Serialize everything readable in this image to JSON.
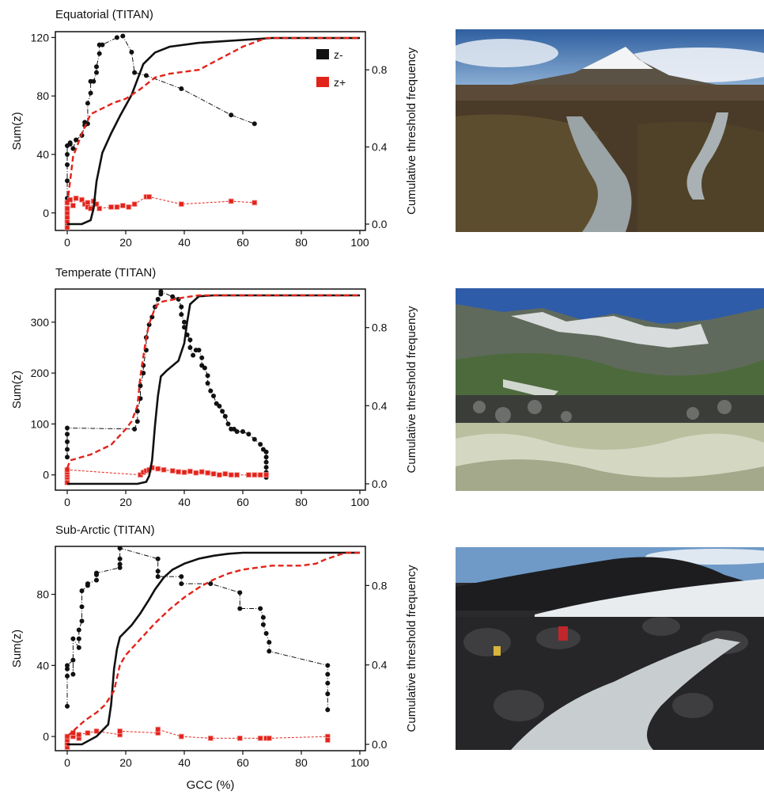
{
  "figure": {
    "shared_xlabel": "GCC (%)"
  },
  "chart_data": [
    {
      "type": "line",
      "title": "Equatorial (TITAN)",
      "xlabel": "",
      "ylabel": "Sum(z)",
      "y2label": "Cumulative threshold frequency",
      "xlim": [
        0,
        100
      ],
      "xticks": [
        0,
        20,
        40,
        60,
        80,
        100
      ],
      "ylim": [
        -12,
        124
      ],
      "yticks": [
        0,
        40,
        80,
        120
      ],
      "y2lim": [
        0,
        1
      ],
      "y2ticks": [
        0.0,
        0.4,
        0.8
      ],
      "legend": {
        "placement": "top-right",
        "entries": [
          "z-",
          "z+"
        ]
      },
      "series": [
        {
          "name": "z-",
          "kind": "points",
          "color": "#111111",
          "axis": "left",
          "x": [
            0,
            0,
            0,
            0,
            0,
            0,
            0,
            0,
            1,
            1,
            2,
            3,
            5,
            6,
            6,
            7,
            7,
            8,
            8,
            9,
            10,
            10,
            11,
            11,
            12,
            17,
            19,
            22,
            23,
            27,
            39,
            56,
            64
          ],
          "y": [
            -12,
            -8,
            -2,
            10,
            22,
            33,
            40,
            46,
            47,
            48,
            44,
            50,
            53,
            60,
            62,
            61,
            75,
            82,
            90,
            90,
            96,
            100,
            109,
            115,
            115,
            120,
            121,
            110,
            96,
            94,
            85,
            67,
            61
          ]
        },
        {
          "name": "z+",
          "kind": "points",
          "color": "#e2231a",
          "axis": "left",
          "x": [
            0,
            0,
            0,
            0,
            0,
            0,
            1,
            2,
            3,
            5,
            6,
            7,
            7,
            8,
            9,
            10,
            11,
            15,
            17,
            19,
            21,
            23,
            27,
            28,
            39,
            56,
            64
          ],
          "y": [
            -10,
            -6,
            -3,
            0,
            3,
            7,
            9,
            5,
            10,
            9,
            6,
            7,
            4,
            3,
            8,
            6,
            3,
            4,
            4,
            5,
            4,
            6,
            11,
            11,
            6,
            8,
            7
          ]
        },
        {
          "name": "z- cumulative",
          "kind": "curve",
          "color": "#111111",
          "axis": "right",
          "x": [
            0,
            5,
            8,
            9,
            10,
            12,
            15,
            18,
            22,
            26,
            30,
            35,
            45,
            70,
            100
          ],
          "y": [
            0.0,
            0.0,
            0.02,
            0.08,
            0.22,
            0.37,
            0.47,
            0.56,
            0.67,
            0.83,
            0.89,
            0.92,
            0.94,
            0.965,
            0.965
          ]
        },
        {
          "name": "z+ cumulative",
          "kind": "curve",
          "color": "#e2231a",
          "axis": "right",
          "x": [
            0,
            2,
            5,
            8,
            12,
            16,
            20,
            25,
            30,
            35,
            40,
            45,
            50,
            55,
            60,
            68,
            100
          ],
          "y": [
            0.1,
            0.35,
            0.47,
            0.57,
            0.6,
            0.63,
            0.65,
            0.7,
            0.76,
            0.78,
            0.79,
            0.8,
            0.84,
            0.88,
            0.92,
            0.965,
            0.965
          ]
        }
      ]
    },
    {
      "type": "line",
      "title": "Temperate (TITAN)",
      "xlabel": "",
      "ylabel": "Sum(z)",
      "y2label": "Cumulative threshold frequency",
      "xlim": [
        0,
        100
      ],
      "xticks": [
        0,
        20,
        40,
        60,
        80,
        100
      ],
      "ylim": [
        -30,
        365
      ],
      "yticks": [
        0,
        100,
        200,
        300
      ],
      "y2lim": [
        0,
        1
      ],
      "y2ticks": [
        0.0,
        0.4,
        0.8
      ],
      "series": [
        {
          "name": "z-",
          "kind": "points",
          "color": "#111111",
          "axis": "left",
          "x": [
            0,
            0,
            0,
            0,
            0,
            23,
            24,
            24,
            25,
            25,
            26,
            26,
            27,
            27,
            28,
            29,
            30,
            31,
            32,
            32,
            36,
            38,
            39,
            39,
            40,
            40,
            41,
            42,
            42,
            43,
            44,
            45,
            46,
            46,
            47,
            48,
            48,
            49,
            50,
            51,
            52,
            53,
            54,
            55,
            56,
            57,
            58,
            60,
            62,
            64,
            66,
            67,
            68,
            68,
            68,
            68,
            68,
            68
          ],
          "y": [
            35,
            50,
            65,
            80,
            92,
            90,
            105,
            125,
            150,
            175,
            200,
            215,
            245,
            270,
            295,
            310,
            330,
            345,
            355,
            360,
            350,
            345,
            330,
            315,
            300,
            290,
            275,
            265,
            250,
            235,
            245,
            245,
            230,
            215,
            210,
            195,
            180,
            165,
            155,
            140,
            135,
            125,
            115,
            100,
            90,
            90,
            85,
            85,
            80,
            70,
            60,
            50,
            45,
            35,
            25,
            15,
            5,
            -5
          ]
        },
        {
          "name": "z+",
          "kind": "points",
          "color": "#e2231a",
          "axis": "left",
          "x": [
            0,
            0,
            0,
            0,
            0,
            25,
            26,
            27,
            28,
            29,
            31,
            33,
            36,
            38,
            40,
            42,
            44,
            46,
            48,
            50,
            52,
            54,
            56,
            58,
            62,
            64,
            66,
            68
          ],
          "y": [
            -15,
            -5,
            0,
            5,
            10,
            0,
            5,
            8,
            10,
            14,
            12,
            10,
            8,
            6,
            5,
            7,
            4,
            6,
            4,
            2,
            0,
            2,
            0,
            0,
            0,
            0,
            0,
            0
          ]
        },
        {
          "name": "z- cumulative",
          "kind": "curve",
          "color": "#111111",
          "axis": "right",
          "x": [
            0,
            24,
            27,
            28,
            29,
            30,
            31,
            32,
            34,
            38,
            40,
            41,
            42,
            45,
            50,
            100
          ],
          "y": [
            0.0,
            0.0,
            0.01,
            0.04,
            0.12,
            0.3,
            0.45,
            0.55,
            0.58,
            0.63,
            0.72,
            0.83,
            0.92,
            0.96,
            0.965,
            0.965
          ]
        },
        {
          "name": "z+ cumulative",
          "kind": "curve",
          "color": "#e2231a",
          "axis": "right",
          "x": [
            0,
            1,
            8,
            15,
            20,
            22,
            24,
            25,
            26,
            27,
            28,
            29,
            30,
            31,
            32,
            33,
            35,
            40,
            45,
            100
          ],
          "y": [
            0.08,
            0.12,
            0.15,
            0.2,
            0.28,
            0.32,
            0.4,
            0.55,
            0.65,
            0.75,
            0.82,
            0.86,
            0.9,
            0.92,
            0.93,
            0.935,
            0.94,
            0.955,
            0.965,
            0.965
          ]
        }
      ]
    },
    {
      "type": "line",
      "title": "Sub-Arctic (TITAN)",
      "xlabel": "GCC (%)",
      "ylabel": "Sum(z)",
      "y2label": "Cumulative threshold frequency",
      "xlim": [
        0,
        100
      ],
      "xticks": [
        0,
        20,
        40,
        60,
        80,
        100
      ],
      "ylim": [
        -8,
        107
      ],
      "yticks": [
        0,
        40,
        80
      ],
      "y2lim": [
        0,
        1
      ],
      "y2ticks": [
        0.0,
        0.4,
        0.8
      ],
      "series": [
        {
          "name": "z-",
          "kind": "points",
          "color": "#111111",
          "axis": "left",
          "x": [
            0,
            0,
            0,
            0,
            2,
            2,
            2,
            4,
            4,
            4,
            5,
            5,
            5,
            7,
            7,
            10,
            10,
            10,
            18,
            18,
            18,
            18,
            31,
            31,
            31,
            39,
            39,
            49,
            59,
            59,
            66,
            67,
            67,
            68,
            69,
            69,
            89,
            89,
            89,
            89,
            89
          ],
          "y": [
            17,
            34,
            38,
            40,
            43,
            35,
            55,
            50,
            55,
            60,
            65,
            73,
            82,
            85,
            86,
            88,
            91,
            92,
            95,
            97,
            100,
            106,
            100,
            93,
            90,
            90,
            86,
            86,
            81,
            72,
            72,
            67,
            63,
            58,
            53,
            48,
            40,
            35,
            30,
            24,
            15
          ]
        },
        {
          "name": "z+",
          "kind": "points",
          "color": "#e2231a",
          "axis": "left",
          "x": [
            0,
            0,
            0,
            0,
            2,
            2,
            4,
            4,
            7,
            10,
            18,
            18,
            31,
            31,
            39,
            49,
            59,
            66,
            68,
            69,
            89,
            89
          ],
          "y": [
            -6,
            -4,
            -2,
            0,
            0,
            2,
            -1,
            1,
            2,
            3,
            1,
            3,
            2,
            4,
            0,
            -1,
            -1,
            -1,
            -1,
            -1,
            0,
            -2
          ]
        },
        {
          "name": "z- cumulative",
          "kind": "curve",
          "color": "#111111",
          "axis": "right",
          "x": [
            0,
            5,
            10,
            14,
            15,
            16,
            17,
            18,
            20,
            22,
            25,
            28,
            30,
            33,
            36,
            40,
            45,
            50,
            55,
            60,
            100
          ],
          "y": [
            0.0,
            0.0,
            0.04,
            0.1,
            0.2,
            0.38,
            0.48,
            0.54,
            0.57,
            0.6,
            0.66,
            0.73,
            0.78,
            0.84,
            0.88,
            0.91,
            0.935,
            0.95,
            0.96,
            0.965,
            0.965
          ]
        },
        {
          "name": "z+ cumulative",
          "kind": "curve",
          "color": "#e2231a",
          "axis": "right",
          "x": [
            0,
            3,
            6,
            10,
            13,
            16,
            18,
            20,
            25,
            30,
            35,
            40,
            45,
            50,
            55,
            60,
            65,
            70,
            75,
            80,
            85,
            88,
            90,
            95,
            100
          ],
          "y": [
            0.04,
            0.08,
            0.12,
            0.16,
            0.2,
            0.27,
            0.4,
            0.45,
            0.53,
            0.61,
            0.68,
            0.74,
            0.79,
            0.83,
            0.86,
            0.88,
            0.89,
            0.9,
            0.9,
            0.9,
            0.91,
            0.93,
            0.94,
            0.965,
            0.965
          ]
        }
      ]
    }
  ]
}
